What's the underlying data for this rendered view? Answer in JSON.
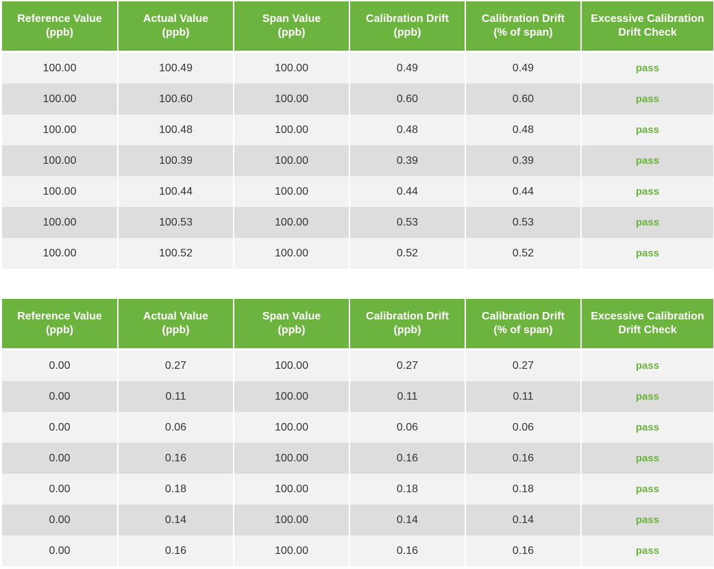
{
  "headers": [
    [
      "Reference Value",
      "(ppb)"
    ],
    [
      "Actual Value",
      "(ppb)"
    ],
    [
      "Span Value",
      "(ppb)"
    ],
    [
      "Calibration Drift",
      "(ppb)"
    ],
    [
      "Calibration Drift",
      "(% of span)"
    ],
    [
      "Excessive Calibration",
      "Drift Check"
    ]
  ],
  "tables": [
    {
      "rows": [
        [
          "100.00",
          "100.49",
          "100.00",
          "0.49",
          "0.49",
          "pass"
        ],
        [
          "100.00",
          "100.60",
          "100.00",
          "0.60",
          "0.60",
          "pass"
        ],
        [
          "100.00",
          "100.48",
          "100.00",
          "0.48",
          "0.48",
          "pass"
        ],
        [
          "100.00",
          "100.39",
          "100.00",
          "0.39",
          "0.39",
          "pass"
        ],
        [
          "100.00",
          "100.44",
          "100.00",
          "0.44",
          "0.44",
          "pass"
        ],
        [
          "100.00",
          "100.53",
          "100.00",
          "0.53",
          "0.53",
          "pass"
        ],
        [
          "100.00",
          "100.52",
          "100.00",
          "0.52",
          "0.52",
          "pass"
        ]
      ]
    },
    {
      "rows": [
        [
          "0.00",
          "0.27",
          "100.00",
          "0.27",
          "0.27",
          "pass"
        ],
        [
          "0.00",
          "0.11",
          "100.00",
          "0.11",
          "0.11",
          "pass"
        ],
        [
          "0.00",
          "0.06",
          "100.00",
          "0.06",
          "0.06",
          "pass"
        ],
        [
          "0.00",
          "0.16",
          "100.00",
          "0.16",
          "0.16",
          "pass"
        ],
        [
          "0.00",
          "0.18",
          "100.00",
          "0.18",
          "0.18",
          "pass"
        ],
        [
          "0.00",
          "0.14",
          "100.00",
          "0.14",
          "0.14",
          "pass"
        ],
        [
          "0.00",
          "0.16",
          "100.00",
          "0.16",
          "0.16",
          "pass"
        ]
      ]
    }
  ],
  "colors": {
    "header_bg": "#6db33f",
    "header_text": "#ffffff",
    "pass_text": "#6db33f",
    "row_light": "#f2f2f2",
    "row_dark": "#dddddd",
    "cell_text": "#333333"
  }
}
